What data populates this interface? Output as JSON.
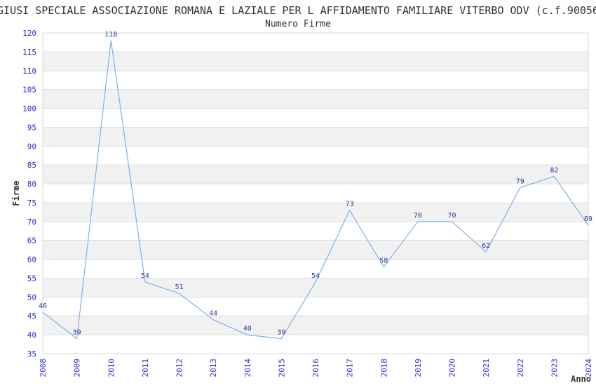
{
  "page": {
    "title": "GIUSI SPECIALE ASSOCIAZIONE ROMANA E LAZIALE PER L AFFIDAMENTO FAMILIARE VITERBO ODV (c.f.90056",
    "subtitle": "Numero Firme"
  },
  "chart_data": {
    "type": "line",
    "title": "Numero Firme",
    "xlabel": "Anno",
    "ylabel": "Firme",
    "categories": [
      "2008",
      "2009",
      "2010",
      "2011",
      "2012",
      "2013",
      "2014",
      "2015",
      "2016",
      "2017",
      "2018",
      "2019",
      "2020",
      "2021",
      "2022",
      "2023",
      "2024"
    ],
    "values": [
      46,
      39,
      118,
      54,
      51,
      44,
      40,
      39,
      54,
      73,
      58,
      70,
      70,
      62,
      79,
      82,
      69
    ],
    "ylim": [
      35,
      120
    ],
    "ytick_step": 5,
    "yticks": [
      35,
      40,
      45,
      50,
      55,
      60,
      65,
      70,
      75,
      80,
      85,
      90,
      95,
      100,
      105,
      110,
      115,
      120
    ],
    "grid": true,
    "legend": "none",
    "colors": {
      "line": "#7fb2e5",
      "tick_label": "#3333cc",
      "point_label": "#333399",
      "band": "#f1f1f1",
      "gridline": "#e2e2e2",
      "border": "#d8d8d8",
      "text": "#333333"
    }
  }
}
